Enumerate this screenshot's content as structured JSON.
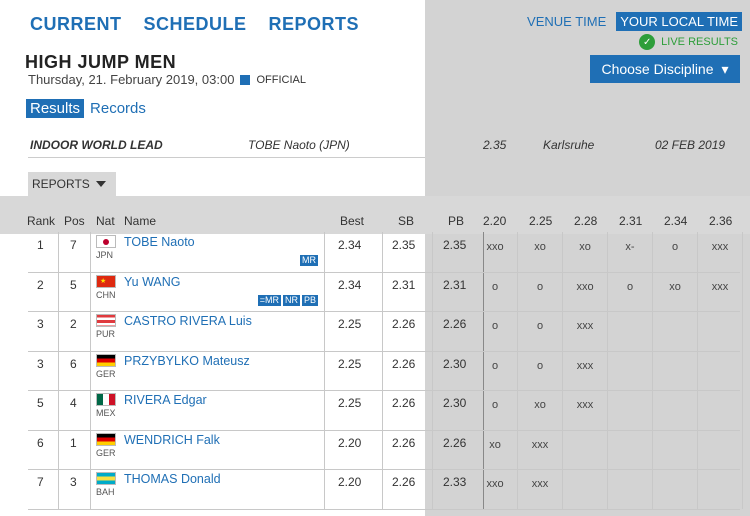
{
  "nav": {
    "items": [
      "CURRENT",
      "SCHEDULE",
      "REPORTS"
    ]
  },
  "time_toggle": {
    "venue": "VENUE TIME",
    "local": "YOUR LOCAL TIME"
  },
  "live_results": "LIVE RESULTS",
  "choose_discipline": "Choose Discipline",
  "event": {
    "title": "HIGH JUMP MEN",
    "date": "Thursday, 21. February 2019, 03:00",
    "status": "OFFICIAL"
  },
  "tabs": {
    "results": "Results",
    "records": "Records"
  },
  "world_lead": {
    "label": "INDOOR WORLD LEAD",
    "athlete": "TOBE Naoto (JPN)",
    "mark": "2.35",
    "venue": "Karlsruhe",
    "date": "02 FEB 2019"
  },
  "reports_button": "REPORTS",
  "columns": {
    "rank": "Rank",
    "pos": "Pos",
    "nat": "Nat",
    "name": "Name",
    "best": "Best",
    "sb": "SB",
    "pb": "PB",
    "heights": [
      "2.20",
      "2.25",
      "2.28",
      "2.31",
      "2.34",
      "2.36"
    ]
  },
  "rows": [
    {
      "rank": "1",
      "pos": "7",
      "nat": "JPN",
      "name": "TOBE Naoto",
      "best": "2.34",
      "sb": "2.35",
      "pb": "2.35",
      "badges": [
        "MR"
      ],
      "attempts": [
        "xxo",
        "xo",
        "xo",
        "x-",
        "o",
        "xxx"
      ]
    },
    {
      "rank": "2",
      "pos": "5",
      "nat": "CHN",
      "name": "Yu WANG",
      "best": "2.34",
      "sb": "2.31",
      "pb": "2.31",
      "badges": [
        "=MR",
        "NR",
        "PB"
      ],
      "attempts": [
        "o",
        "o",
        "xxo",
        "o",
        "xo",
        "xxx"
      ]
    },
    {
      "rank": "3",
      "pos": "2",
      "nat": "PUR",
      "name": "CASTRO RIVERA Luis",
      "best": "2.25",
      "sb": "2.26",
      "pb": "2.26",
      "badges": [],
      "attempts": [
        "o",
        "o",
        "xxx",
        "",
        "",
        ""
      ]
    },
    {
      "rank": "3",
      "pos": "6",
      "nat": "GER",
      "name": "PRZYBYLKO Mateusz",
      "best": "2.25",
      "sb": "2.26",
      "pb": "2.30",
      "badges": [],
      "attempts": [
        "o",
        "o",
        "xxx",
        "",
        "",
        ""
      ]
    },
    {
      "rank": "5",
      "pos": "4",
      "nat": "MEX",
      "name": "RIVERA Edgar",
      "best": "2.25",
      "sb": "2.26",
      "pb": "2.30",
      "badges": [],
      "attempts": [
        "o",
        "xo",
        "xxx",
        "",
        "",
        ""
      ]
    },
    {
      "rank": "6",
      "pos": "1",
      "nat": "GER",
      "name": "WENDRICH Falk",
      "best": "2.20",
      "sb": "2.26",
      "pb": "2.26",
      "badges": [],
      "attempts": [
        "xo",
        "xxx",
        "",
        "",
        "",
        ""
      ]
    },
    {
      "rank": "7",
      "pos": "3",
      "nat": "BAH",
      "name": "THOMAS Donald",
      "best": "2.20",
      "sb": "2.26",
      "pb": "2.33",
      "badges": [],
      "attempts": [
        "xxo",
        "xxx",
        "",
        "",
        "",
        ""
      ]
    }
  ],
  "colors": {
    "accent": "#1f6fb5",
    "live": "#2e9e3a"
  }
}
